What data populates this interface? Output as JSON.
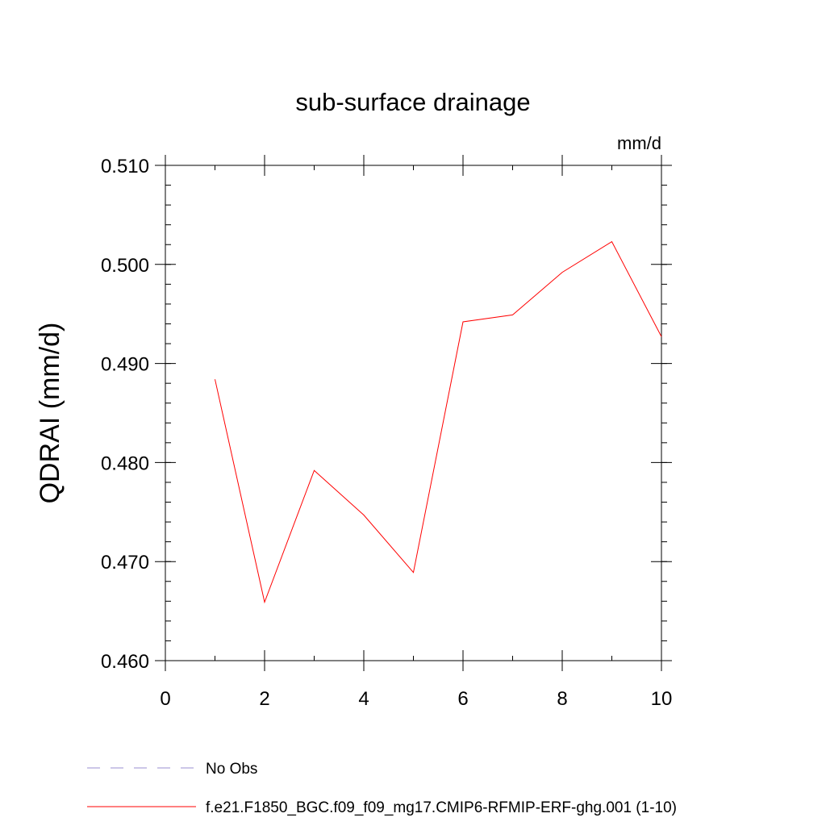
{
  "chart_data": {
    "type": "line",
    "title": "sub-surface drainage",
    "units_label": "mm/d",
    "ylabel": "QDRAI  (mm/d)",
    "xlabel": "",
    "xlim": [
      0,
      10
    ],
    "ylim": [
      0.46,
      0.51
    ],
    "x_ticks": [
      0,
      2,
      4,
      6,
      8,
      10
    ],
    "x_tick_labels": [
      "0",
      "2",
      "4",
      "6",
      "8",
      "10"
    ],
    "y_ticks": [
      0.46,
      0.47,
      0.48,
      0.49,
      0.5,
      0.51
    ],
    "y_tick_labels": [
      "0.460",
      "0.470",
      "0.480",
      "0.490",
      "0.500",
      "0.510"
    ],
    "grid": false,
    "legend_position": "bottom",
    "series": [
      {
        "name": "f.e21.F1850_BGC.f09_f09_mg17.CMIP6-RFMIP-ERF-ghg.001 (1-10)",
        "color": "#ff0000",
        "dash": "solid",
        "x": [
          1,
          2,
          3,
          4,
          5,
          6,
          7,
          8,
          9,
          10
        ],
        "y": [
          0.4884,
          0.4659,
          0.4792,
          0.4747,
          0.4689,
          0.4942,
          0.4949,
          0.4992,
          0.5023,
          0.4927
        ]
      }
    ],
    "legend": [
      {
        "label": "No Obs",
        "color": "#9a8fd0",
        "dash": "dashed"
      },
      {
        "label": "f.e21.F1850_BGC.f09_f09_mg17.CMIP6-RFMIP-ERF-ghg.001 (1-10)",
        "color": "#ff0000",
        "dash": "solid"
      }
    ]
  }
}
